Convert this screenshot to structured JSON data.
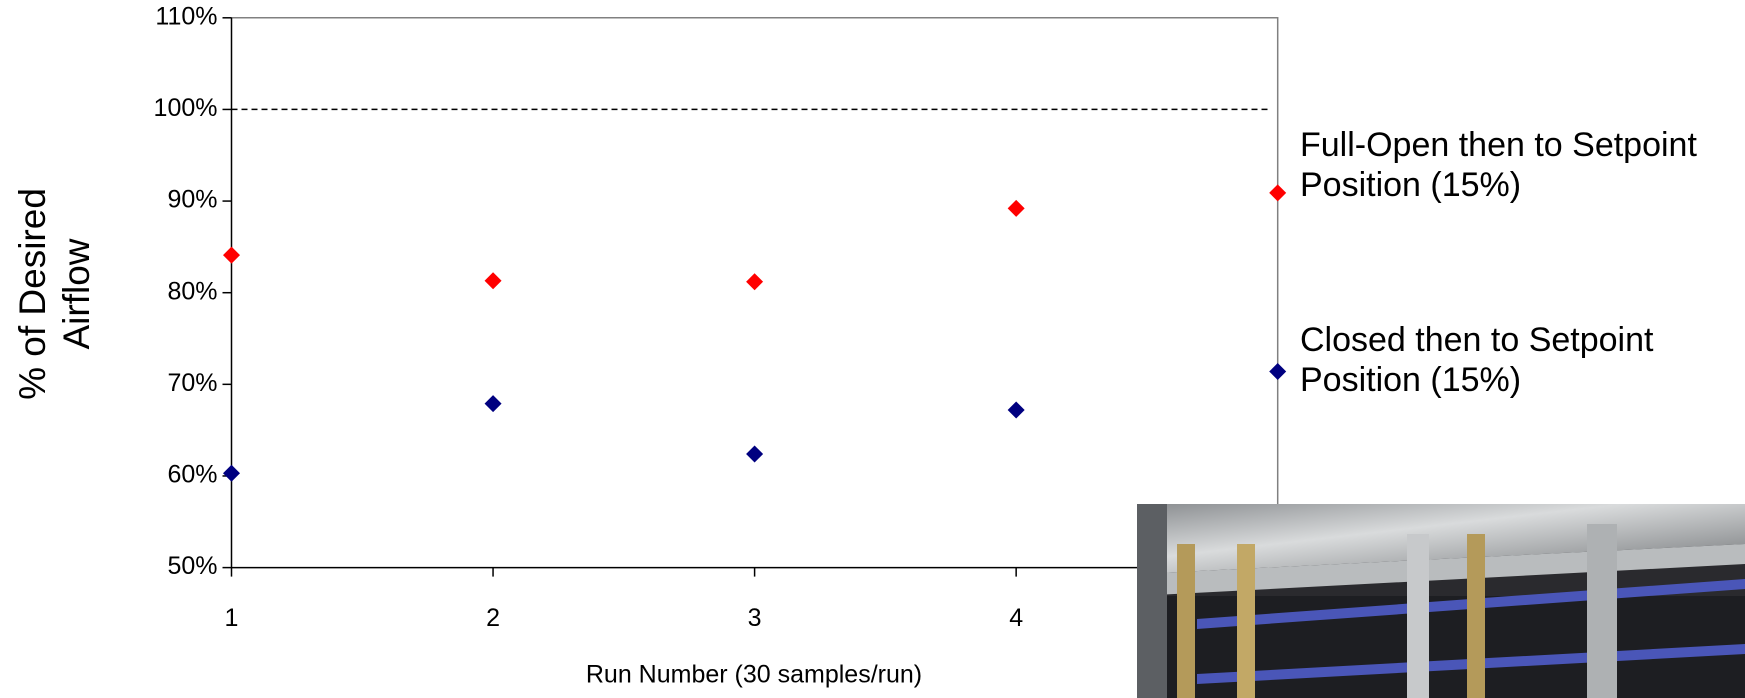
{
  "chart_data": {
    "type": "scatter",
    "x_label": "Run Number (30 samples/run)",
    "y_label": "% of Desired Airflow",
    "xlim": [
      1,
      5
    ],
    "xticks": [
      1,
      2,
      3,
      4
    ],
    "ylim": [
      50,
      110
    ],
    "yticks": [
      {
        "value": 50,
        "label": "50%"
      },
      {
        "value": 60,
        "label": "60%"
      },
      {
        "value": 70,
        "label": "70%"
      },
      {
        "value": 80,
        "label": "80%"
      },
      {
        "value": 90,
        "label": "90%"
      },
      {
        "value": 100,
        "label": "100%"
      },
      {
        "value": 110,
        "label": "110%"
      }
    ],
    "reference_line": 100,
    "x": [
      1,
      2,
      3,
      4,
      5
    ],
    "series": [
      {
        "name": "Full-Open then to Setpoint Position (15%)",
        "color": "#ff0000",
        "values": [
          84.1,
          81.3,
          81.2,
          89.2,
          90.9
        ]
      },
      {
        "name": "Closed then to Setpoint Position (15%)",
        "color": "#000080",
        "values": [
          60.3,
          67.9,
          62.4,
          67.2,
          71.4
        ]
      }
    ]
  }
}
